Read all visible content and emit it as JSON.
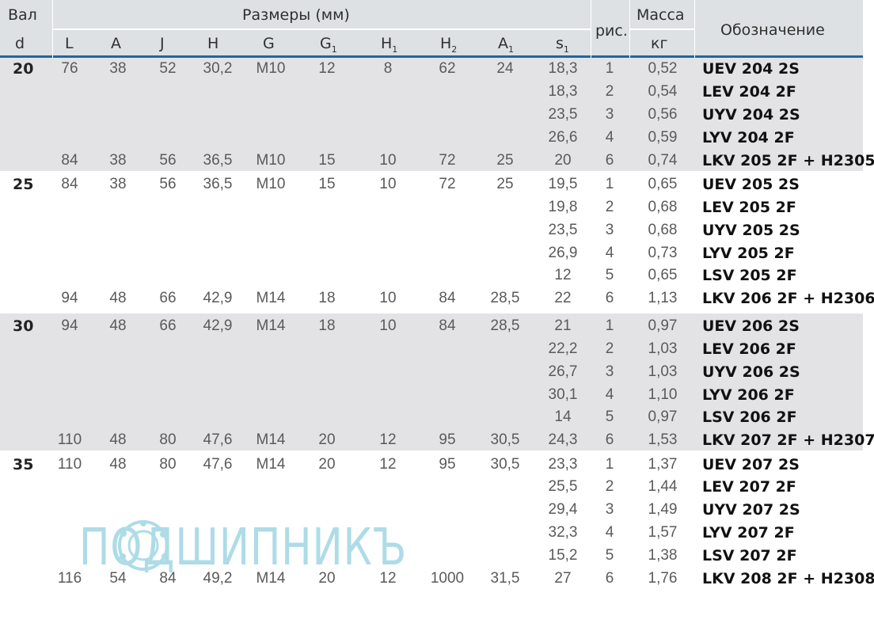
{
  "header": {
    "shaft": "Вал",
    "shaft_sym": "d",
    "dimensions": "Размеры (мм)",
    "cols": [
      {
        "base": "L",
        "sub": ""
      },
      {
        "base": "A",
        "sub": ""
      },
      {
        "base": "J",
        "sub": ""
      },
      {
        "base": "H",
        "sub": ""
      },
      {
        "base": "G",
        "sub": ""
      },
      {
        "base": "G",
        "sub": "1"
      },
      {
        "base": "H",
        "sub": "1"
      },
      {
        "base": "H",
        "sub": "2"
      },
      {
        "base": "A",
        "sub": "1"
      },
      {
        "base": "s",
        "sub": "1"
      }
    ],
    "fig": "рис.",
    "mass": "Масса",
    "mass_unit": "кг",
    "designation": "Обозначение"
  },
  "rows": [
    {
      "d": "20",
      "L": "76",
      "A": "38",
      "J": "52",
      "H": "30,2",
      "G": "M10",
      "G1": "12",
      "H1": "8",
      "H2": "62",
      "A1": "24",
      "s1": "18,3",
      "fig": "1",
      "mass": "0,52",
      "code": "UEV 204 2S"
    },
    {
      "d": "",
      "L": "",
      "A": "",
      "J": "",
      "H": "",
      "G": "",
      "G1": "",
      "H1": "",
      "H2": "",
      "A1": "",
      "s1": "18,3",
      "fig": "2",
      "mass": "0,54",
      "code": "LEV 204 2F"
    },
    {
      "d": "",
      "L": "",
      "A": "",
      "J": "",
      "H": "",
      "G": "",
      "G1": "",
      "H1": "",
      "H2": "",
      "A1": "",
      "s1": "23,5",
      "fig": "3",
      "mass": "0,56",
      "code": "UYV 204 2S"
    },
    {
      "d": "",
      "L": "",
      "A": "",
      "J": "",
      "H": "",
      "G": "",
      "G1": "",
      "H1": "",
      "H2": "",
      "A1": "",
      "s1": "26,6",
      "fig": "4",
      "mass": "0,59",
      "code": "LYV 204 2F"
    },
    {
      "d": "",
      "L": "84",
      "A": "38",
      "J": "56",
      "H": "36,5",
      "G": "M10",
      "G1": "15",
      "H1": "10",
      "H2": "72",
      "A1": "25",
      "s1": "20",
      "fig": "6",
      "mass": "0,74",
      "code": "LKV 205 2F + H2305"
    },
    {
      "d": "25",
      "L": "84",
      "A": "38",
      "J": "56",
      "H": "36,5",
      "G": "M10",
      "G1": "15",
      "H1": "10",
      "H2": "72",
      "A1": "25",
      "s1": "19,5",
      "fig": "1",
      "mass": "0,65",
      "code": "UEV 205 2S"
    },
    {
      "d": "",
      "L": "",
      "A": "",
      "J": "",
      "H": "",
      "G": "",
      "G1": "",
      "H1": "",
      "H2": "",
      "A1": "",
      "s1": "19,8",
      "fig": "2",
      "mass": "0,68",
      "code": "LEV 205 2F"
    },
    {
      "d": "",
      "L": "",
      "A": "",
      "J": "",
      "H": "",
      "G": "",
      "G1": "",
      "H1": "",
      "H2": "",
      "A1": "",
      "s1": "23,5",
      "fig": "3",
      "mass": "0,68",
      "code": "UYV 205 2S"
    },
    {
      "d": "",
      "L": "",
      "A": "",
      "J": "",
      "H": "",
      "G": "",
      "G1": "",
      "H1": "",
      "H2": "",
      "A1": "",
      "s1": "26,9",
      "fig": "4",
      "mass": "0,73",
      "code": "LYV 205 2F"
    },
    {
      "d": "",
      "L": "",
      "A": "",
      "J": "",
      "H": "",
      "G": "",
      "G1": "",
      "H1": "",
      "H2": "",
      "A1": "",
      "s1": "12",
      "fig": "5",
      "mass": "0,65",
      "code": "LSV 205 2F"
    },
    {
      "d": "",
      "L": "94",
      "A": "48",
      "J": "66",
      "H": "42,9",
      "G": "M14",
      "G1": "18",
      "H1": "10",
      "H2": "84",
      "A1": "28,5",
      "s1": "22",
      "fig": "6",
      "mass": "1,13",
      "code": "LKV 206 2F + H2306"
    },
    {
      "d": "30",
      "L": "94",
      "A": "48",
      "J": "66",
      "H": "42,9",
      "G": "M14",
      "G1": "18",
      "H1": "10",
      "H2": "84",
      "A1": "28,5",
      "s1": "21",
      "fig": "1",
      "mass": "0,97",
      "code": "UEV 206 2S"
    },
    {
      "d": "",
      "L": "",
      "A": "",
      "J": "",
      "H": "",
      "G": "",
      "G1": "",
      "H1": "",
      "H2": "",
      "A1": "",
      "s1": "22,2",
      "fig": "2",
      "mass": "1,03",
      "code": "LEV 206 2F"
    },
    {
      "d": "",
      "L": "",
      "A": "",
      "J": "",
      "H": "",
      "G": "",
      "G1": "",
      "H1": "",
      "H2": "",
      "A1": "",
      "s1": "26,7",
      "fig": "3",
      "mass": "1,03",
      "code": "UYV 206 2S"
    },
    {
      "d": "",
      "L": "",
      "A": "",
      "J": "",
      "H": "",
      "G": "",
      "G1": "",
      "H1": "",
      "H2": "",
      "A1": "",
      "s1": "30,1",
      "fig": "4",
      "mass": "1,10",
      "code": "LYV 206 2F"
    },
    {
      "d": "",
      "L": "",
      "A": "",
      "J": "",
      "H": "",
      "G": "",
      "G1": "",
      "H1": "",
      "H2": "",
      "A1": "",
      "s1": "14",
      "fig": "5",
      "mass": "0,97",
      "code": "LSV 206 2F"
    },
    {
      "d": "",
      "L": "110",
      "A": "48",
      "J": "80",
      "H": "47,6",
      "G": "M14",
      "G1": "20",
      "H1": "12",
      "H2": "95",
      "A1": "30,5",
      "s1": "24,3",
      "fig": "6",
      "mass": "1,53",
      "code": "LKV 207 2F + H2307"
    },
    {
      "d": "35",
      "L": "110",
      "A": "48",
      "J": "80",
      "H": "47,6",
      "G": "M14",
      "G1": "20",
      "H1": "12",
      "H2": "95",
      "A1": "30,5",
      "s1": "23,3",
      "fig": "1",
      "mass": "1,37",
      "code": "UEV 207 2S"
    },
    {
      "d": "",
      "L": "",
      "A": "",
      "J": "",
      "H": "",
      "G": "",
      "G1": "",
      "H1": "",
      "H2": "",
      "A1": "",
      "s1": "25,5",
      "fig": "2",
      "mass": "1,44",
      "code": "LEV 207 2F"
    },
    {
      "d": "",
      "L": "",
      "A": "",
      "J": "",
      "H": "",
      "G": "",
      "G1": "",
      "H1": "",
      "H2": "",
      "A1": "",
      "s1": "29,4",
      "fig": "3",
      "mass": "1,49",
      "code": "UYV 207 2S"
    },
    {
      "d": "",
      "L": "",
      "A": "",
      "J": "",
      "H": "",
      "G": "",
      "G1": "",
      "H1": "",
      "H2": "",
      "A1": "",
      "s1": "32,3",
      "fig": "4",
      "mass": "1,57",
      "code": "LYV 207 2F"
    },
    {
      "d": "",
      "L": "",
      "A": "",
      "J": "",
      "H": "",
      "G": "",
      "G1": "",
      "H1": "",
      "H2": "",
      "A1": "",
      "s1": "15,2",
      "fig": "5",
      "mass": "1,38",
      "code": "LSV 207 2F"
    },
    {
      "d": "",
      "L": "116",
      "A": "54",
      "J": "84",
      "H": "49,2",
      "G": "M14",
      "G1": "20",
      "H1": "12",
      "H2": "1000",
      "A1": "31,5",
      "s1": "27",
      "fig": "6",
      "mass": "1,76",
      "code": "LKV 208 2F + H2308"
    }
  ],
  "watermark": {
    "text": "ПОДШИПНИКЪ",
    "color": "#9fd6e3"
  },
  "colors": {
    "header_bg": "#dde1e4",
    "accent_line": "#1d66a8",
    "band_bg": "#e3e3e5"
  }
}
